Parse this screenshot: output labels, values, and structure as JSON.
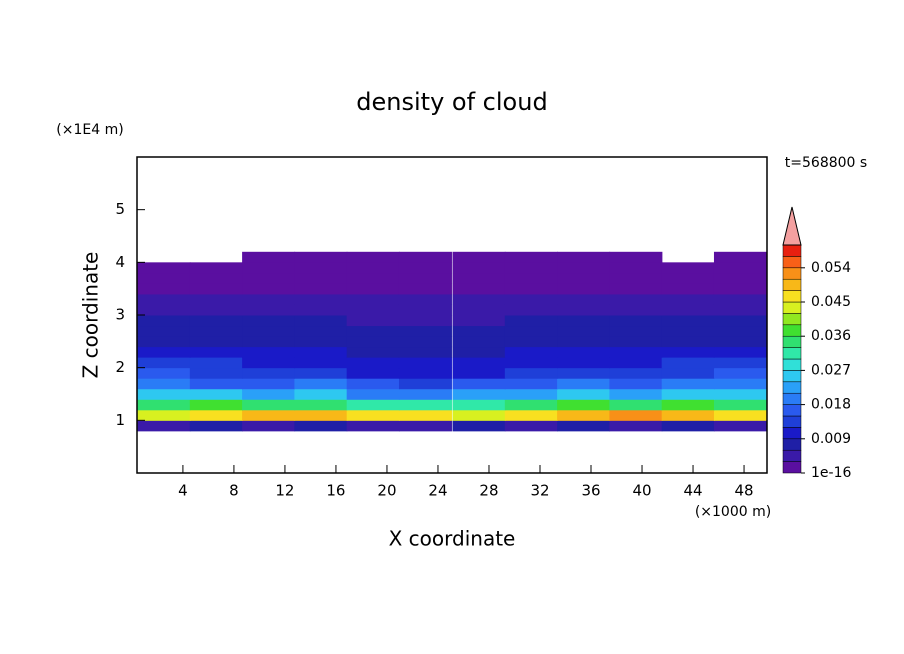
{
  "chart_data": {
    "type": "contour",
    "title": "density of cloud",
    "x_label": "X coordinate",
    "x_unit": "(×1000 m)",
    "y_label": "Z coordinate",
    "y_unit": "(×1E4 m)",
    "annotation": "t=568800 s",
    "xlim": [
      0.4,
      49.8
    ],
    "xticks": [
      4,
      8,
      12,
      16,
      20,
      24,
      28,
      32,
      36,
      40,
      44,
      48
    ],
    "ylim": [
      0,
      6
    ],
    "yticks": [
      1,
      2,
      3,
      4,
      5
    ],
    "x": [
      2.5,
      6.6,
      10.7,
      14.8,
      18.9,
      23.0,
      27.2,
      31.3,
      35.4,
      39.5,
      43.6,
      47.7
    ],
    "z": [
      0.9,
      1.1,
      1.3,
      1.5,
      1.7,
      1.9,
      2.1,
      2.3,
      2.5,
      2.7,
      2.9,
      3.1,
      3.3,
      3.5,
      3.7,
      3.9,
      4.1
    ],
    "field": [
      [
        0.005,
        0.006,
        0.005,
        0.006,
        0.005,
        0.005,
        0.006,
        0.005,
        0.006,
        0.005,
        0.006,
        0.005
      ],
      [
        0.044,
        0.047,
        0.05,
        0.048,
        0.046,
        0.045,
        0.043,
        0.046,
        0.049,
        0.051,
        0.05,
        0.046
      ],
      [
        0.034,
        0.036,
        0.033,
        0.035,
        0.032,
        0.03,
        0.031,
        0.034,
        0.036,
        0.035,
        0.037,
        0.033
      ],
      [
        0.026,
        0.024,
        0.022,
        0.025,
        0.02,
        0.019,
        0.021,
        0.023,
        0.024,
        0.022,
        0.025,
        0.026
      ],
      [
        0.019,
        0.017,
        0.016,
        0.018,
        0.015,
        0.014,
        0.015,
        0.016,
        0.018,
        0.017,
        0.019,
        0.018
      ],
      [
        0.015,
        0.014,
        0.013,
        0.012,
        0.011,
        0.01,
        0.011,
        0.012,
        0.013,
        0.014,
        0.014,
        0.015
      ],
      [
        0.012,
        0.012,
        0.011,
        0.01,
        0.009,
        0.009,
        0.009,
        0.01,
        0.011,
        0.011,
        0.012,
        0.012
      ],
      [
        0.01,
        0.01,
        0.009,
        0.009,
        0.008,
        0.008,
        0.008,
        0.009,
        0.009,
        0.01,
        0.01,
        0.01
      ],
      [
        0.008,
        0.008,
        0.008,
        0.008,
        0.007,
        0.007,
        0.007,
        0.008,
        0.008,
        0.008,
        0.008,
        0.008
      ],
      [
        0.007,
        0.007,
        0.007,
        0.007,
        0.006,
        0.006,
        0.006,
        0.007,
        0.007,
        0.007,
        0.007,
        0.007
      ],
      [
        0.006,
        0.006,
        0.006,
        0.006,
        0.005,
        0.005,
        0.005,
        0.006,
        0.006,
        0.006,
        0.006,
        0.006
      ],
      [
        0.005,
        0.005,
        0.005,
        0.004,
        0.004,
        0.004,
        0.004,
        0.005,
        0.005,
        0.005,
        0.005,
        0.005
      ],
      [
        0.004,
        0.004,
        0.004,
        0.003,
        0.003,
        0.003,
        0.003,
        0.004,
        0.004,
        0.004,
        0.004,
        0.004
      ],
      [
        0.002,
        0.002,
        0.002,
        0.002,
        0.002,
        0.002,
        0.002,
        0.002,
        0.002,
        0.002,
        0.002,
        0.002
      ],
      [
        0.002,
        0.002,
        0.002,
        0.002,
        0.002,
        0.002,
        0.002,
        0.002,
        0.002,
        0.002,
        0.002,
        0.002
      ],
      [
        0.002,
        0.002,
        0.002,
        0.002,
        0.002,
        0.002,
        0.002,
        0.002,
        0.002,
        0.002,
        0.002,
        0.002
      ],
      [
        null,
        null,
        0.002,
        0.002,
        0.002,
        0.002,
        0.002,
        0.002,
        0.002,
        0.002,
        null,
        0.002
      ]
    ],
    "levels": [
      0,
      0.003,
      0.006,
      0.009,
      0.012,
      0.015,
      0.018,
      0.021,
      0.024,
      0.027,
      0.03,
      0.033,
      0.036,
      0.039,
      0.042,
      0.045,
      0.048,
      0.051,
      0.054,
      0.057,
      0.06
    ],
    "colors": [
      "#5a0fa0",
      "#3a1aa8",
      "#1f1fa6",
      "#1a1ac8",
      "#1f3fd8",
      "#2a5aee",
      "#2a7cf6",
      "#2aa0f8",
      "#2ec8f0",
      "#30e0d8",
      "#30e8a8",
      "#30e070",
      "#40e030",
      "#90e820",
      "#d8f020",
      "#f8e020",
      "#f8b818",
      "#f89018",
      "#f86018",
      "#e82010"
    ],
    "extend_color": "#f4a0a0",
    "cticks": [
      1e-16,
      0.009,
      0.018,
      0.027,
      0.036,
      0.045,
      0.054
    ]
  }
}
